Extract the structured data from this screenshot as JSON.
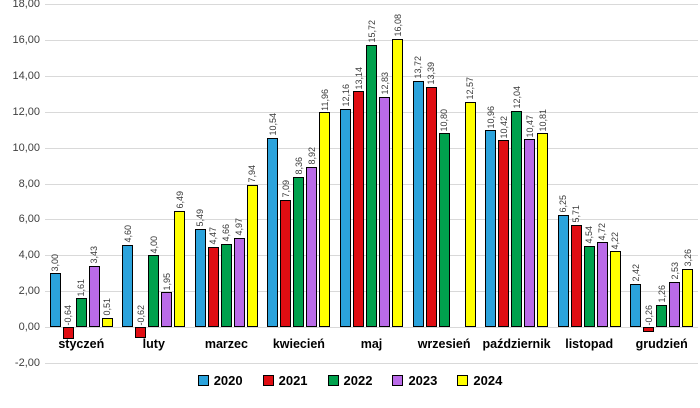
{
  "chart_data": {
    "type": "bar",
    "title": "",
    "xlabel": "",
    "ylabel": "",
    "categories": [
      "styczeń",
      "luty",
      "marzec",
      "kwiecień",
      "maj",
      "wrzesień",
      "październik",
      "listopad",
      "grudzień"
    ],
    "series": [
      {
        "name": "2020",
        "color": "#2BA3DC",
        "values": [
          3.0,
          4.6,
          5.49,
          10.54,
          12.16,
          13.72,
          10.96,
          6.25,
          2.42
        ]
      },
      {
        "name": "2021",
        "color": "#E00D12",
        "values": [
          -0.64,
          -0.62,
          4.47,
          7.09,
          13.14,
          13.39,
          10.42,
          5.71,
          -0.26
        ]
      },
      {
        "name": "2022",
        "color": "#00A14D",
        "values": [
          1.61,
          4.0,
          4.66,
          8.36,
          15.72,
          10.8,
          12.04,
          4.54,
          1.26
        ]
      },
      {
        "name": "2023",
        "color": "#BA6BE8",
        "values": [
          3.43,
          1.95,
          4.97,
          8.92,
          12.83,
          null,
          10.47,
          4.72,
          2.53
        ]
      },
      {
        "name": "2024",
        "color": "#FFFF00",
        "values": [
          0.51,
          6.49,
          7.94,
          11.96,
          16.08,
          12.57,
          10.81,
          4.22,
          3.26
        ]
      }
    ],
    "y_axis": {
      "min": -2,
      "max": 18,
      "step": 2,
      "decimal_separator": ",",
      "tick_format_decimals": 2
    },
    "grid": true,
    "gridline_color": "#d9d9d9",
    "bar_border_color": "#000000",
    "legend_position": "bottom",
    "data_label_rotation": "vertical"
  }
}
